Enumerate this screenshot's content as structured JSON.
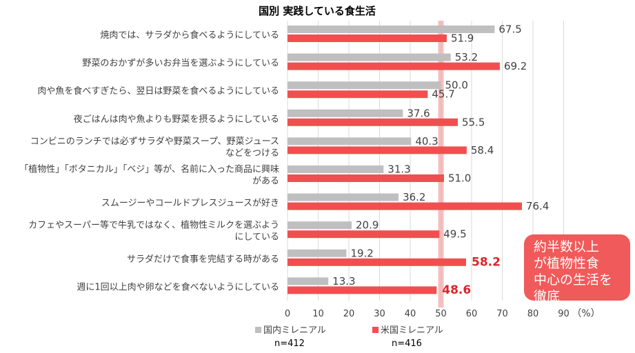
{
  "chart_data": {
    "type": "bar",
    "orientation": "horizontal",
    "title": "国別 実践している食生活",
    "unit_label": "（%）",
    "categories": [
      [
        "焼肉では、サラダから食べるようにしている"
      ],
      [
        "野菜のおかずが多いお弁当を選ぶようにしている"
      ],
      [
        "肉や魚を食べすぎたら、翌日は野菜を食べるようにしている"
      ],
      [
        "夜ごはんは肉や魚よりも野菜を摂るようにしている"
      ],
      [
        "コンビニのランチでは必ずサラダや野菜スープ、野菜ジュース",
        "などをつける"
      ],
      [
        "「植物性」「ボタニカル」「ベジ」等が、名前に入った商品に興味",
        "がある"
      ],
      [
        "スムージーやコールドプレスジュースが好き"
      ],
      [
        "カフェやスーパー等で牛乳ではなく、植物性ミルクを選ぶよう",
        "にしている"
      ],
      [
        "サラダだけで食事を完結する時がある"
      ],
      [
        "週に1回以上肉や卵などを食べないようにしている"
      ]
    ],
    "series": [
      {
        "name": "国内ミレニアル",
        "n_label": "n=412",
        "color": "#bfbfbf",
        "values": [
          67.5,
          53.2,
          50.0,
          37.6,
          40.3,
          31.3,
          36.2,
          20.9,
          19.2,
          13.3
        ]
      },
      {
        "name": "米国ミレニアル",
        "n_label": "n=416",
        "color": "#f14f4f",
        "values": [
          51.9,
          69.2,
          45.7,
          55.5,
          58.4,
          51.0,
          76.4,
          49.5,
          58.2,
          48.6
        ]
      }
    ],
    "highlighted": [
      {
        "series": 1,
        "index": 8
      },
      {
        "series": 1,
        "index": 9
      }
    ],
    "highlight_color": "#d9262b",
    "reference_line": {
      "value": 50,
      "color": "#f2aaaa"
    },
    "xlim": [
      0,
      100
    ],
    "xticks": [
      0,
      10,
      20,
      30,
      40,
      50,
      60,
      70,
      80,
      90
    ],
    "grid": true,
    "legend_position": "bottom"
  },
  "callout": {
    "lines": [
      "約半数以上",
      "が植物性食",
      "中心の生活を",
      "徹底"
    ]
  }
}
